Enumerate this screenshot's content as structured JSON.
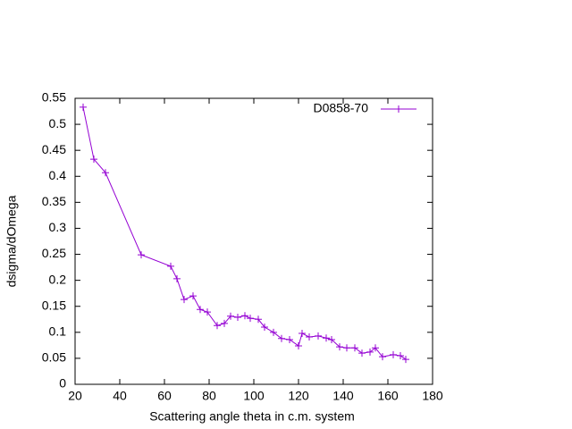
{
  "chart_data": {
    "type": "line",
    "xlabel": "Scattering angle theta in c.m. system",
    "ylabel": "dsigma/dOmega",
    "legend": "top-right",
    "xlim": [
      20,
      180
    ],
    "xticks": [
      20,
      40,
      60,
      80,
      100,
      120,
      140,
      160,
      180
    ],
    "ylim": [
      0,
      0.55
    ],
    "yticks": [
      0,
      0.05,
      0.1,
      0.15,
      0.2,
      0.25,
      0.3,
      0.35,
      0.4,
      0.45,
      0.5,
      0.55
    ],
    "x": [
      23.6,
      28.4,
      33.6,
      49.6,
      62.8,
      65.6,
      68.8,
      72.8,
      76,
      79.2,
      83.6,
      86.8,
      89.6,
      92.8,
      96,
      98.4,
      102,
      104.8,
      108.8,
      112.4,
      116,
      120,
      121.6,
      124.8,
      128.8,
      132.4,
      134.8,
      138.4,
      141.6,
      145.2,
      148.4,
      152,
      154.4,
      157.6,
      162.4,
      165.6,
      168
    ],
    "series": [
      {
        "name": "D0858-70",
        "color": "#9400d3",
        "values": [
          0.533,
          0.433,
          0.407,
          0.249,
          0.227,
          0.203,
          0.163,
          0.17,
          0.144,
          0.139,
          0.113,
          0.117,
          0.131,
          0.129,
          0.132,
          0.127,
          0.125,
          0.11,
          0.1,
          0.088,
          0.086,
          0.074,
          0.098,
          0.091,
          0.093,
          0.089,
          0.086,
          0.072,
          0.07,
          0.07,
          0.06,
          0.062,
          0.07,
          0.053,
          0.057,
          0.055,
          0.048
        ]
      }
    ]
  }
}
